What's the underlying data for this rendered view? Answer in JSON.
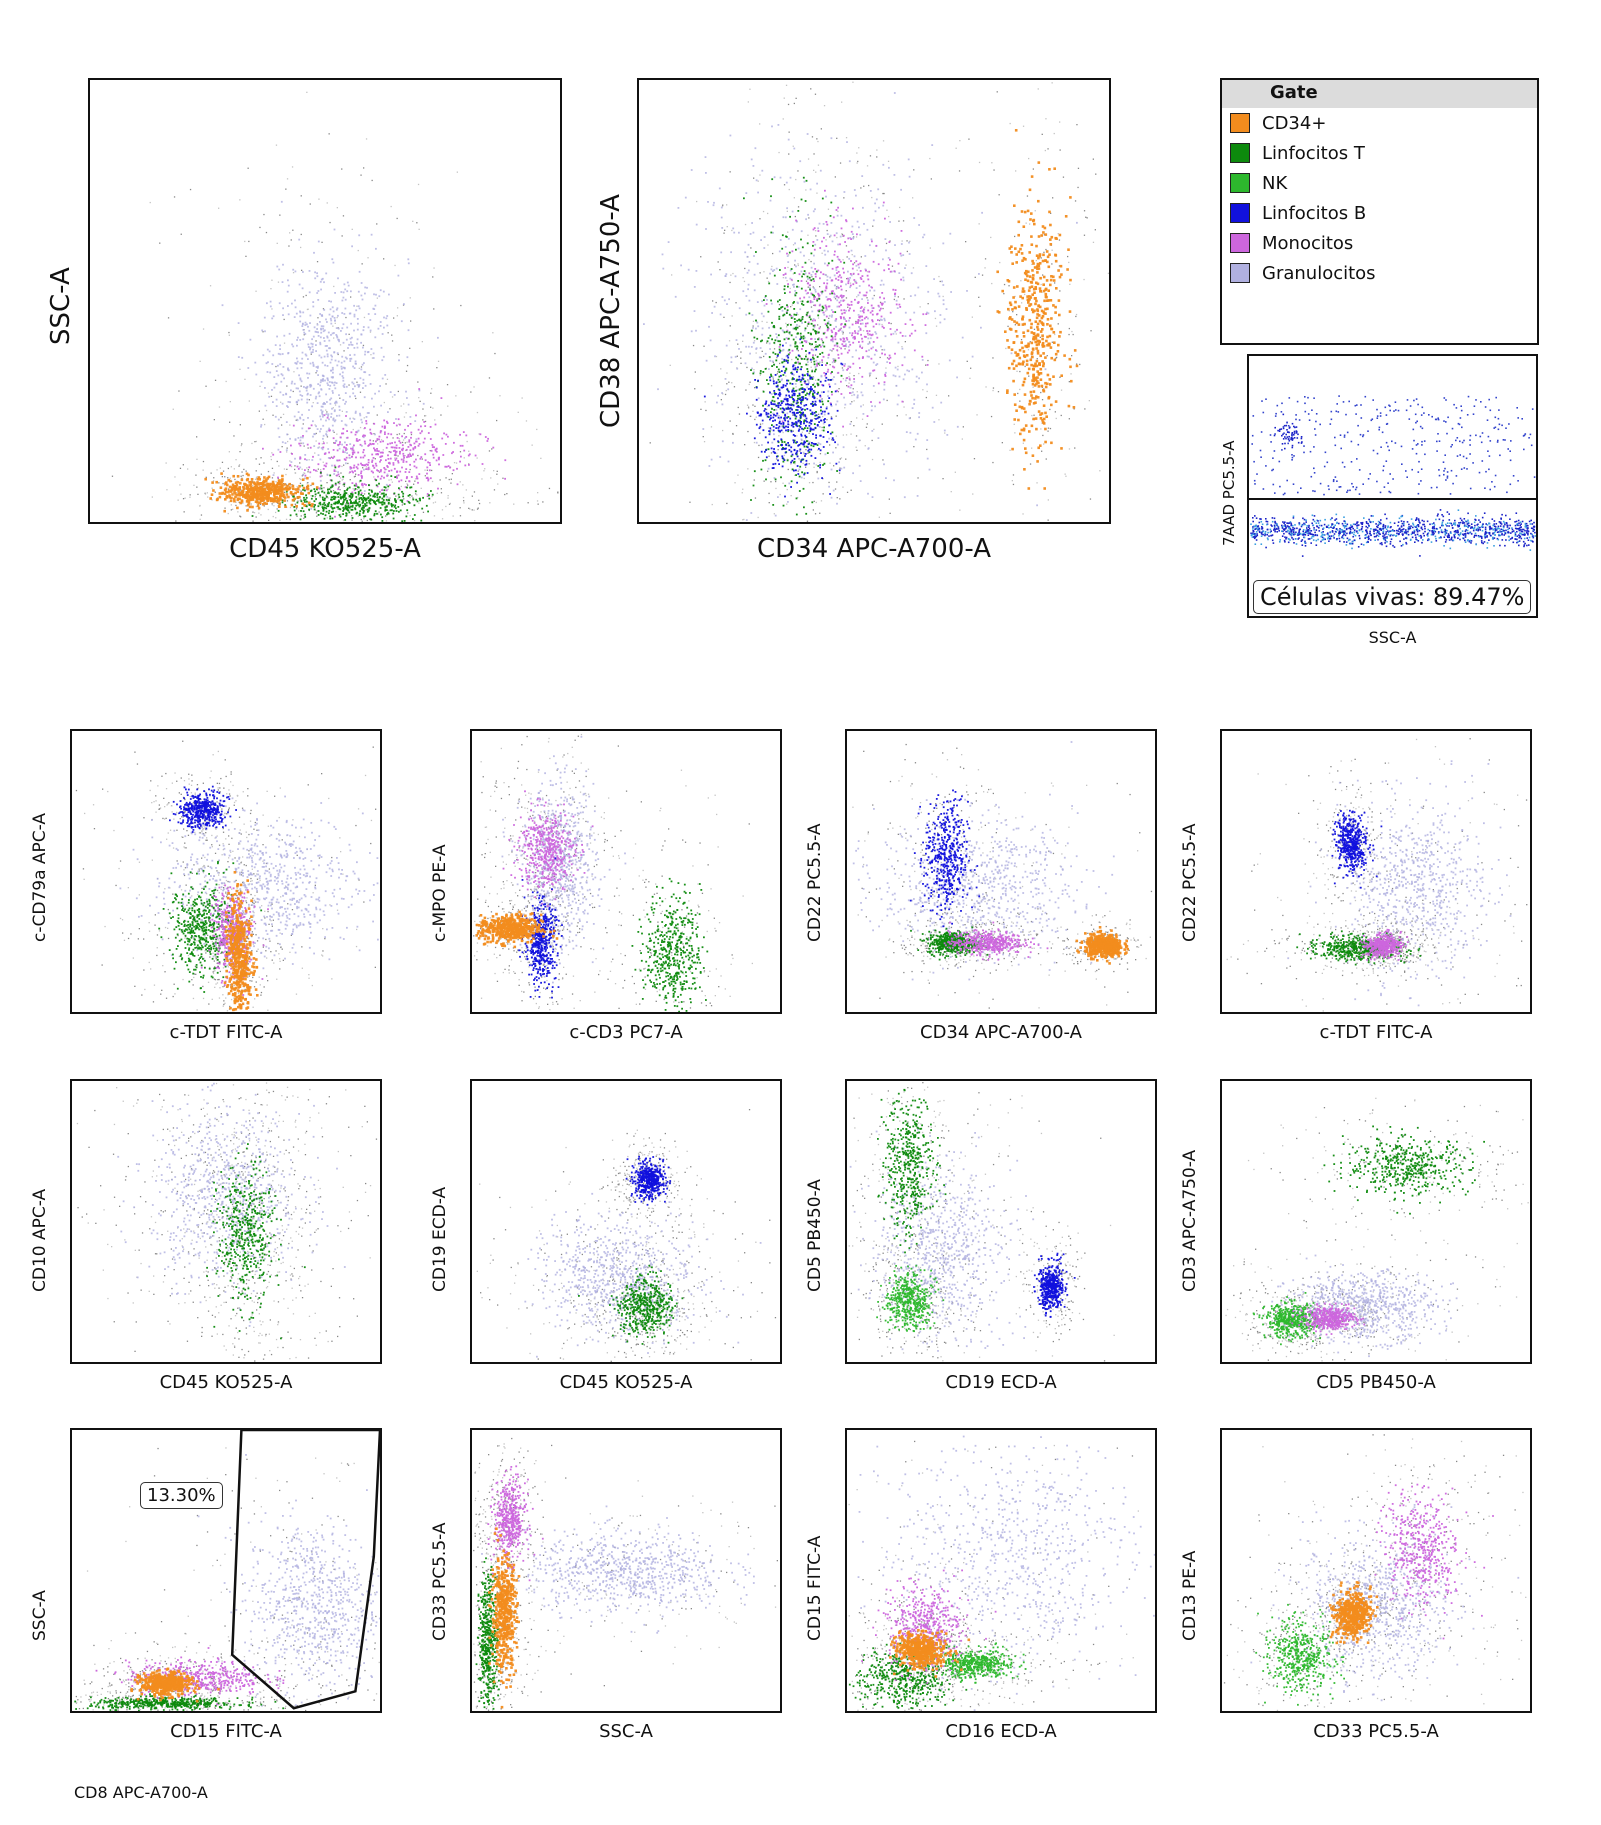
{
  "legend": {
    "title": "Gate",
    "items": [
      {
        "label": "CD34+",
        "color": "#f28c1e"
      },
      {
        "label": "Linfocitos T",
        "color": "#0d8a0d"
      },
      {
        "label": "NK",
        "color": "#2db82d"
      },
      {
        "label": "Linfocitos B",
        "color": "#1111dd"
      },
      {
        "label": "Monocitos",
        "color": "#cc66dd"
      },
      {
        "label": "Granulocitos",
        "color": "#b0b0e0"
      }
    ]
  },
  "viability": {
    "xlabel": "SSC-A",
    "ylabel": "7AAD PC5.5-A",
    "annotation": "Células vivas: 89.47%"
  },
  "footnote": "CD8 APC-A700-A",
  "chart_data": [
    {
      "id": "p1",
      "type": "scatter",
      "xlabel": "CD45 KO525-A",
      "ylabel": "SSC-A",
      "populations": [
        {
          "gate": "Granulocitos",
          "cx": 0.5,
          "cy": 0.35,
          "sx": 0.07,
          "sy": 0.12
        },
        {
          "gate": "Monocitos",
          "cx": 0.62,
          "cy": 0.15,
          "sx": 0.09,
          "sy": 0.04
        },
        {
          "gate": "Linfocitos T",
          "cx": 0.56,
          "cy": 0.05,
          "sx": 0.07,
          "sy": 0.02
        },
        {
          "gate": "CD34+",
          "cx": 0.36,
          "cy": 0.07,
          "sx": 0.04,
          "sy": 0.015
        }
      ]
    },
    {
      "id": "p2",
      "type": "scatter",
      "xlabel": "CD34 APC-A700-A",
      "ylabel": "CD38 APC-A750-A",
      "populations": [
        {
          "gate": "Granulocitos",
          "cx": 0.4,
          "cy": 0.45,
          "sx": 0.14,
          "sy": 0.18
        },
        {
          "gate": "Monocitos",
          "cx": 0.44,
          "cy": 0.48,
          "sx": 0.06,
          "sy": 0.09
        },
        {
          "gate": "Linfocitos T",
          "cx": 0.33,
          "cy": 0.36,
          "sx": 0.04,
          "sy": 0.15
        },
        {
          "gate": "Linfocitos B",
          "cx": 0.33,
          "cy": 0.24,
          "sx": 0.04,
          "sy": 0.06
        },
        {
          "gate": "CD34+",
          "cx": 0.84,
          "cy": 0.45,
          "sx": 0.03,
          "sy": 0.14
        }
      ]
    },
    {
      "id": "p3",
      "type": "scatter",
      "xlabel": "c-TDT FITC-A",
      "ylabel": "c-CD79a APC-A",
      "populations": [
        {
          "gate": "Granulocitos",
          "cx": 0.62,
          "cy": 0.45,
          "sx": 0.16,
          "sy": 0.12
        },
        {
          "gate": "Linfocitos B",
          "cx": 0.42,
          "cy": 0.72,
          "sx": 0.035,
          "sy": 0.03
        },
        {
          "gate": "Linfocitos T",
          "cx": 0.42,
          "cy": 0.3,
          "sx": 0.05,
          "sy": 0.08
        },
        {
          "gate": "Monocitos",
          "cx": 0.52,
          "cy": 0.28,
          "sx": 0.03,
          "sy": 0.07
        },
        {
          "gate": "CD34+",
          "cx": 0.54,
          "cy": 0.2,
          "sx": 0.02,
          "sy": 0.1
        }
      ]
    },
    {
      "id": "p4",
      "type": "scatter",
      "xlabel": "c-CD3 PC7-A",
      "ylabel": "c-MPO PE-A",
      "populations": [
        {
          "gate": "Granulocitos",
          "cx": 0.28,
          "cy": 0.52,
          "sx": 0.06,
          "sy": 0.14
        },
        {
          "gate": "Monocitos",
          "cx": 0.24,
          "cy": 0.58,
          "sx": 0.045,
          "sy": 0.07
        },
        {
          "gate": "Linfocitos B",
          "cx": 0.22,
          "cy": 0.25,
          "sx": 0.025,
          "sy": 0.07
        },
        {
          "gate": "Linfocitos T",
          "cx": 0.65,
          "cy": 0.22,
          "sx": 0.045,
          "sy": 0.1
        },
        {
          "gate": "CD34+",
          "cx": 0.12,
          "cy": 0.3,
          "sx": 0.05,
          "sy": 0.025
        }
      ]
    },
    {
      "id": "p5",
      "type": "scatter",
      "xlabel": "CD34 APC-A700-A",
      "ylabel": "CD22 PC5.5-A",
      "populations": [
        {
          "gate": "Granulocitos",
          "cx": 0.42,
          "cy": 0.45,
          "sx": 0.16,
          "sy": 0.12
        },
        {
          "gate": "Linfocitos B",
          "cx": 0.32,
          "cy": 0.55,
          "sx": 0.035,
          "sy": 0.1
        },
        {
          "gate": "Linfocitos T",
          "cx": 0.34,
          "cy": 0.25,
          "sx": 0.04,
          "sy": 0.02
        },
        {
          "gate": "Monocitos",
          "cx": 0.45,
          "cy": 0.25,
          "sx": 0.06,
          "sy": 0.02
        },
        {
          "gate": "CD34+",
          "cx": 0.83,
          "cy": 0.24,
          "sx": 0.03,
          "sy": 0.02
        }
      ]
    },
    {
      "id": "p6",
      "type": "scatter",
      "xlabel": "c-TDT FITC-A",
      "ylabel": "CD22 PC5.5-A",
      "populations": [
        {
          "gate": "Granulocitos",
          "cx": 0.62,
          "cy": 0.45,
          "sx": 0.12,
          "sy": 0.15
        },
        {
          "gate": "Linfocitos B",
          "cx": 0.42,
          "cy": 0.6,
          "sx": 0.025,
          "sy": 0.05
        },
        {
          "gate": "Linfocitos T",
          "cx": 0.44,
          "cy": 0.23,
          "sx": 0.07,
          "sy": 0.02
        },
        {
          "gate": "Monocitos",
          "cx": 0.52,
          "cy": 0.24,
          "sx": 0.03,
          "sy": 0.02
        }
      ]
    },
    {
      "id": "p7",
      "type": "scatter",
      "xlabel": "CD45 KO525-A",
      "ylabel": "CD10 APC-A",
      "populations": [
        {
          "gate": "Granulocitos",
          "cx": 0.5,
          "cy": 0.6,
          "sx": 0.12,
          "sy": 0.15
        },
        {
          "gate": "Linfocitos T",
          "cx": 0.56,
          "cy": 0.45,
          "sx": 0.045,
          "sy": 0.12
        }
      ]
    },
    {
      "id": "p8",
      "type": "scatter",
      "xlabel": "CD45 KO525-A",
      "ylabel": "CD19 ECD-A",
      "populations": [
        {
          "gate": "Granulocitos",
          "cx": 0.48,
          "cy": 0.3,
          "sx": 0.12,
          "sy": 0.1
        },
        {
          "gate": "Linfocitos B",
          "cx": 0.57,
          "cy": 0.65,
          "sx": 0.025,
          "sy": 0.03
        },
        {
          "gate": "Linfocitos T",
          "cx": 0.56,
          "cy": 0.2,
          "sx": 0.045,
          "sy": 0.05
        }
      ]
    },
    {
      "id": "p9",
      "type": "scatter",
      "xlabel": "CD19 ECD-A",
      "ylabel": "CD5 PB450-A",
      "populations": [
        {
          "gate": "Granulocitos",
          "cx": 0.3,
          "cy": 0.4,
          "sx": 0.1,
          "sy": 0.15
        },
        {
          "gate": "Linfocitos T",
          "cx": 0.2,
          "cy": 0.7,
          "sx": 0.04,
          "sy": 0.12
        },
        {
          "gate": "NK",
          "cx": 0.2,
          "cy": 0.22,
          "sx": 0.035,
          "sy": 0.05
        },
        {
          "gate": "Linfocitos B",
          "cx": 0.66,
          "cy": 0.27,
          "sx": 0.02,
          "sy": 0.04
        }
      ]
    },
    {
      "id": "p10",
      "type": "scatter",
      "xlabel": "CD5 PB450-A",
      "ylabel": "CD3 APC-A750-A",
      "populations": [
        {
          "gate": "Granulocitos",
          "cx": 0.45,
          "cy": 0.2,
          "sx": 0.12,
          "sy": 0.06
        },
        {
          "gate": "Linfocitos T",
          "cx": 0.6,
          "cy": 0.7,
          "sx": 0.1,
          "sy": 0.05
        },
        {
          "gate": "NK",
          "cx": 0.22,
          "cy": 0.15,
          "sx": 0.04,
          "sy": 0.03
        },
        {
          "gate": "Monocitos",
          "cx": 0.35,
          "cy": 0.16,
          "sx": 0.04,
          "sy": 0.02
        }
      ]
    },
    {
      "id": "p11",
      "type": "scatter",
      "xlabel": "CD15 FITC-A",
      "ylabel": "SSC-A",
      "gate_label": "13.30%",
      "populations": [
        {
          "gate": "Granulocitos",
          "cx": 0.78,
          "cy": 0.38,
          "sx": 0.11,
          "sy": 0.15
        },
        {
          "gate": "Monocitos",
          "cx": 0.4,
          "cy": 0.12,
          "sx": 0.11,
          "sy": 0.03
        },
        {
          "gate": "Linfocitos T",
          "cx": 0.3,
          "cy": 0.03,
          "sx": 0.12,
          "sy": 0.01
        },
        {
          "gate": "CD34+",
          "cx": 0.3,
          "cy": 0.1,
          "sx": 0.04,
          "sy": 0.02
        }
      ]
    },
    {
      "id": "p12",
      "type": "scatter",
      "xlabel": "SSC-A",
      "ylabel": "CD33 PC5.5-A",
      "populations": [
        {
          "gate": "Granulocitos",
          "cx": 0.5,
          "cy": 0.5,
          "sx": 0.16,
          "sy": 0.07
        },
        {
          "gate": "Monocitos",
          "cx": 0.12,
          "cy": 0.68,
          "sx": 0.025,
          "sy": 0.07
        },
        {
          "gate": "Linfocitos T",
          "cx": 0.05,
          "cy": 0.25,
          "sx": 0.015,
          "sy": 0.12
        },
        {
          "gate": "CD34+",
          "cx": 0.1,
          "cy": 0.35,
          "sx": 0.02,
          "sy": 0.1
        }
      ]
    },
    {
      "id": "p13",
      "type": "scatter",
      "xlabel": "CD16 ECD-A",
      "ylabel": "CD15 FITC-A",
      "populations": [
        {
          "gate": "Granulocitos",
          "cx": 0.55,
          "cy": 0.55,
          "sx": 0.2,
          "sy": 0.2
        },
        {
          "gate": "Linfocitos T",
          "cx": 0.18,
          "cy": 0.12,
          "sx": 0.07,
          "sy": 0.05
        },
        {
          "gate": "NK",
          "cx": 0.42,
          "cy": 0.17,
          "sx": 0.06,
          "sy": 0.025
        },
        {
          "gate": "Monocitos",
          "cx": 0.25,
          "cy": 0.3,
          "sx": 0.06,
          "sy": 0.07
        },
        {
          "gate": "CD34+",
          "cx": 0.24,
          "cy": 0.22,
          "sx": 0.04,
          "sy": 0.03
        }
      ]
    },
    {
      "id": "p14",
      "type": "scatter",
      "xlabel": "CD33 PC5.5-A",
      "ylabel": "CD13 PE-A",
      "populations": [
        {
          "gate": "Granulocitos",
          "cx": 0.5,
          "cy": 0.38,
          "sx": 0.12,
          "sy": 0.12
        },
        {
          "gate": "Monocitos",
          "cx": 0.65,
          "cy": 0.57,
          "sx": 0.06,
          "sy": 0.1
        },
        {
          "gate": "NK",
          "cx": 0.25,
          "cy": 0.2,
          "sx": 0.05,
          "sy": 0.06
        },
        {
          "gate": "CD34+",
          "cx": 0.42,
          "cy": 0.35,
          "sx": 0.03,
          "sy": 0.04
        }
      ]
    }
  ]
}
